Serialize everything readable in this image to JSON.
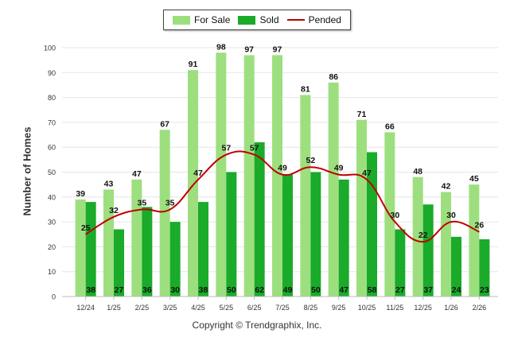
{
  "chart_data": {
    "type": "bar",
    "categories": [
      "12/24",
      "1/25",
      "2/25",
      "3/25",
      "4/25",
      "5/25",
      "6/25",
      "7/25",
      "8/25",
      "9/25",
      "10/25",
      "11/25",
      "12/25",
      "1/26",
      "2/26"
    ],
    "series": [
      {
        "name": "For Sale",
        "type": "bar",
        "color": "#9ddf7f",
        "values": [
          39,
          43,
          47,
          67,
          91,
          98,
          97,
          97,
          81,
          86,
          71,
          66,
          48,
          42,
          45
        ]
      },
      {
        "name": "Sold",
        "type": "bar",
        "color": "#1aab2a",
        "values": [
          38,
          27,
          36,
          30,
          38,
          50,
          62,
          49,
          50,
          47,
          58,
          27,
          37,
          24,
          23
        ]
      },
      {
        "name": "Pended",
        "type": "line",
        "color": "#c00000",
        "values": [
          25,
          32,
          35,
          35,
          47,
          57,
          57,
          49,
          52,
          49,
          47,
          30,
          22,
          30,
          26
        ]
      }
    ],
    "ylabel": "Number of Homes",
    "ylim": [
      0,
      100
    ],
    "yticks": [
      0,
      10,
      20,
      30,
      40,
      50,
      60,
      70,
      80,
      90,
      100
    ],
    "grid": true,
    "legend_position": "top-center"
  },
  "footer": {
    "copyright": "Copyright © Trendgraphix, Inc."
  }
}
